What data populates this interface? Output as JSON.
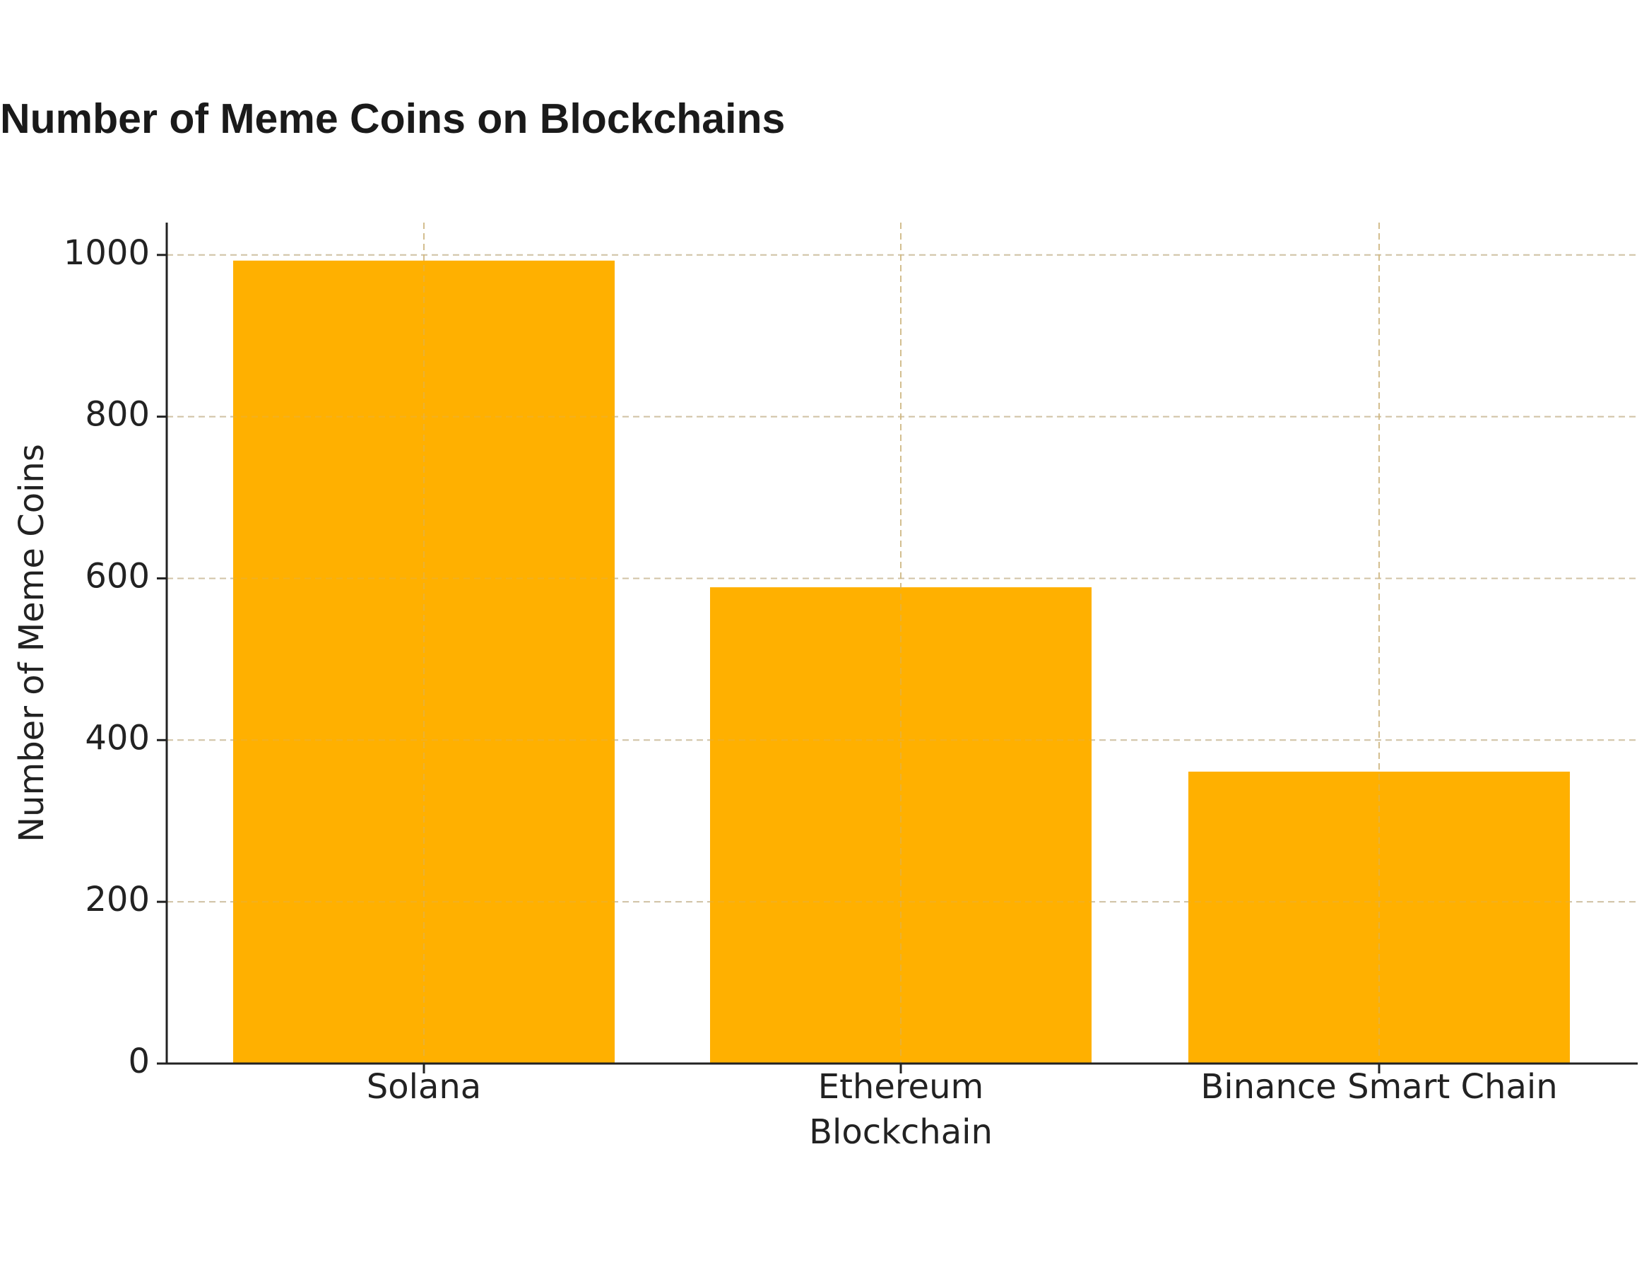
{
  "chart_data": {
    "type": "bar",
    "title": "Number of Meme Coins on Blockchains",
    "categories": [
      "Solana",
      "Ethereum",
      "Binance Smart Chain"
    ],
    "values": [
      993,
      589,
      361
    ],
    "xlabel": "Blockchain",
    "ylabel": "Number of Meme Coins",
    "ylim": [
      0,
      1040
    ],
    "yticks": [
      0,
      200,
      400,
      600,
      800,
      1000
    ],
    "grid": true,
    "grid_style": "dashed",
    "bar_color": "#FFB000",
    "axis_color": "#222222",
    "grid_color": "#cccccc"
  }
}
